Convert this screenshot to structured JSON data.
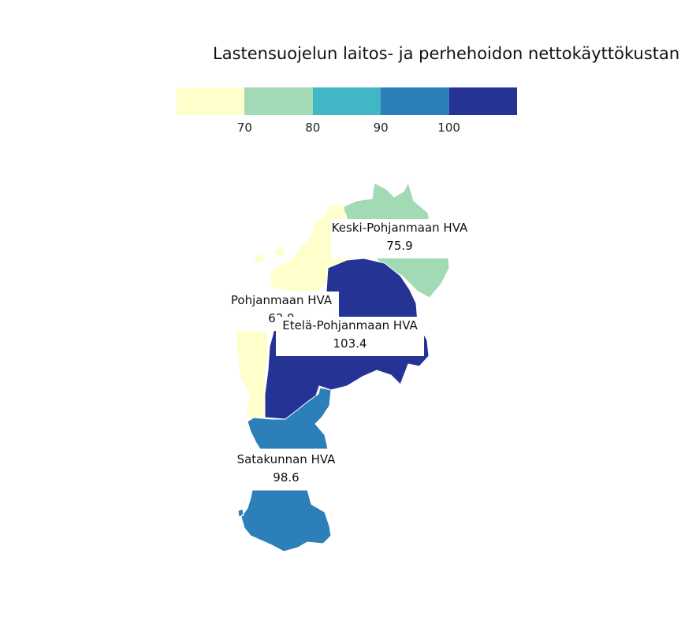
{
  "title": "Lastensuojelun laitos- ja perhehoidon nettokäyttökustannukset",
  "legend": {
    "colors": [
      "#ffffcc",
      "#a1dab4",
      "#41b6c4",
      "#2c7fb8",
      "#253494"
    ],
    "ticks": [
      "70",
      "80",
      "90",
      "100"
    ]
  },
  "regions": [
    {
      "id": "keski-pohjanmaa",
      "name": "Keski-Pohjanmaan HVA",
      "value": "75.9",
      "color": "#a1dab4"
    },
    {
      "id": "pohjanmaa",
      "name": "Pohjanmaan HVA",
      "value": "62.9",
      "color": "#ffffcc"
    },
    {
      "id": "etela-pohjanmaa",
      "name": "Etelä-Pohjanmaan HVA",
      "value": "103.4",
      "color": "#253494"
    },
    {
      "id": "satakunta",
      "name": "Satakunnan HVA",
      "value": "98.6",
      "color": "#2c7fb8"
    }
  ]
}
